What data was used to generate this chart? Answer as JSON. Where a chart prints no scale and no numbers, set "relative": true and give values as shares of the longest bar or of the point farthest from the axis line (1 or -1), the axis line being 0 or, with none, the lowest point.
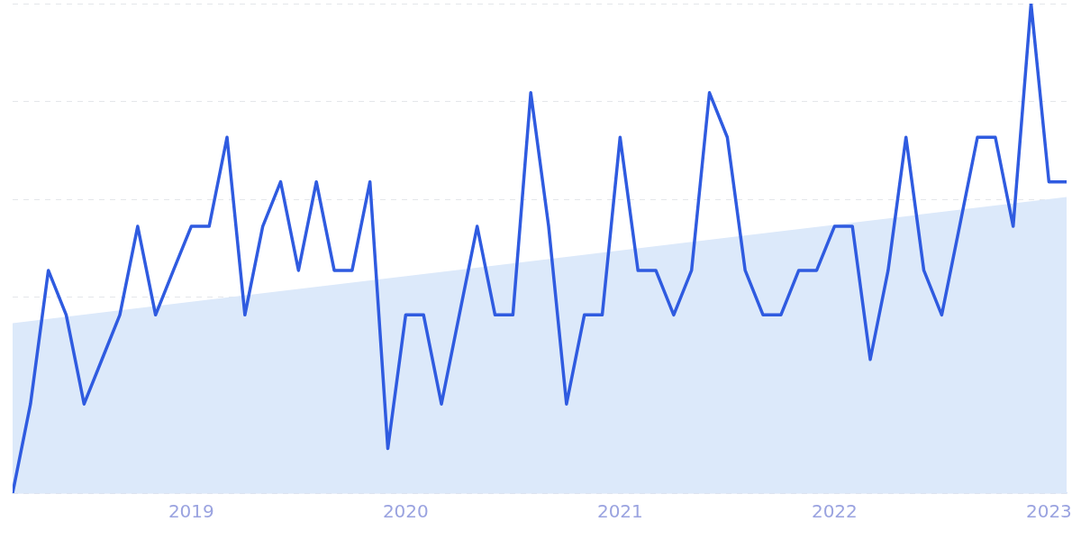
{
  "chart_data": {
    "type": "line",
    "relative": true,
    "grid": "y",
    "marker": "none",
    "x": [
      "2018-03",
      "2018-04",
      "2018-05",
      "2018-06",
      "2018-07",
      "2018-08",
      "2018-09",
      "2018-10",
      "2018-11",
      "2018-12",
      "2019-01",
      "2019-02",
      "2019-03",
      "2019-04",
      "2019-05",
      "2019-06",
      "2019-07",
      "2019-08",
      "2019-09",
      "2019-10",
      "2019-11",
      "2019-12",
      "2020-01",
      "2020-02",
      "2020-03",
      "2020-04",
      "2020-05",
      "2020-06",
      "2020-07",
      "2020-08",
      "2020-09",
      "2020-10",
      "2020-11",
      "2020-12",
      "2021-01",
      "2021-02",
      "2021-03",
      "2021-04",
      "2021-05",
      "2021-06",
      "2021-07",
      "2021-08",
      "2021-09",
      "2021-10",
      "2021-11",
      "2021-12",
      "2022-01",
      "2022-02",
      "2022-03",
      "2022-04",
      "2022-05",
      "2022-06",
      "2022-07",
      "2022-08",
      "2022-09",
      "2022-10",
      "2022-11",
      "2022-12",
      "2023-01",
      "2023-02"
    ],
    "xlim": [
      "2018-03",
      "2023-02"
    ],
    "xticks": [
      {
        "value": "2019-01",
        "label": "2019"
      },
      {
        "value": "2020-01",
        "label": "2020"
      },
      {
        "value": "2021-01",
        "label": "2021"
      },
      {
        "value": "2022-01",
        "label": "2022"
      },
      {
        "value": "2023-01",
        "label": "2023"
      }
    ],
    "series": [
      {
        "type": "area",
        "color": "#dce9fa",
        "x": [
          "2018-03",
          "2023-02"
        ],
        "values": [
          0.347,
          0.605
        ]
      },
      {
        "color": "#2f5be0",
        "values": [
          0,
          0.182,
          0.455,
          0.364,
          0.182,
          0.273,
          0.364,
          0.545,
          0.364,
          0.455,
          0.545,
          0.545,
          0.727,
          0.364,
          0.545,
          0.636,
          0.455,
          0.636,
          0.455,
          0.455,
          0.636,
          0.091,
          0.364,
          0.364,
          0.182,
          0.364,
          0.545,
          0.364,
          0.364,
          0.818,
          0.545,
          0.182,
          0.364,
          0.364,
          0.727,
          0.455,
          0.455,
          0.364,
          0.455,
          0.818,
          0.727,
          0.455,
          0.364,
          0.364,
          0.455,
          0.455,
          0.545,
          0.545,
          0.273,
          0.455,
          0.727,
          0.455,
          0.364,
          0.545,
          0.727,
          0.727,
          0.545,
          1,
          0.636,
          0.636
        ]
      }
    ]
  }
}
